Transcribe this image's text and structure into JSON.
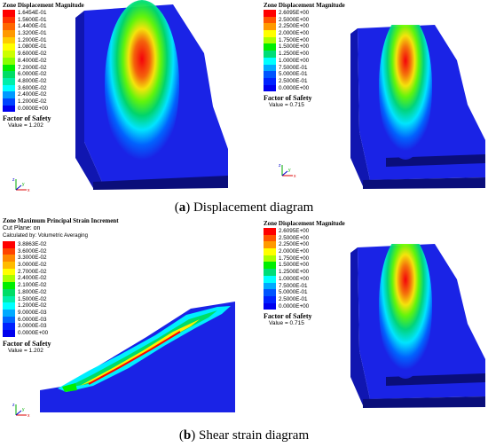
{
  "legends": {
    "top_left": {
      "title": "Zone Displacement Magnitude",
      "entries": [
        {
          "label": "1.6454E-01",
          "color": "#ff0000"
        },
        {
          "label": "1.5600E-01",
          "color": "#ff3300"
        },
        {
          "label": "1.4400E-01",
          "color": "#ff6600"
        },
        {
          "label": "1.3200E-01",
          "color": "#ff9900"
        },
        {
          "label": "1.2000E-01",
          "color": "#ffcc00"
        },
        {
          "label": "1.0800E-01",
          "color": "#ffff00"
        },
        {
          "label": "9.6000E-02",
          "color": "#ccff00"
        },
        {
          "label": "8.4000E-02",
          "color": "#88ff00"
        },
        {
          "label": "7.2000E-02",
          "color": "#00ee00"
        },
        {
          "label": "6.0000E-02",
          "color": "#00dd66"
        },
        {
          "label": "4.8000E-02",
          "color": "#00eeaa"
        },
        {
          "label": "3.6000E-02",
          "color": "#00ffff"
        },
        {
          "label": "2.4000E-02",
          "color": "#0099ff"
        },
        {
          "label": "1.2000E-02",
          "color": "#0044ff"
        },
        {
          "label": "0.0000E+00",
          "color": "#0000ee"
        }
      ],
      "fos_label": "Factor of Safety",
      "fos_value": "Value = 1.202"
    },
    "top_right": {
      "title": "Zone Displacement Magnitude",
      "entries": [
        {
          "label": "2.6095E+00",
          "color": "#ff0000"
        },
        {
          "label": "2.5000E+00",
          "color": "#ff5500"
        },
        {
          "label": "2.2500E+00",
          "color": "#ff9900"
        },
        {
          "label": "2.0000E+00",
          "color": "#ffff00"
        },
        {
          "label": "1.7500E+00",
          "color": "#aaff00"
        },
        {
          "label": "1.5000E+00",
          "color": "#00ee00"
        },
        {
          "label": "1.2500E+00",
          "color": "#00dd77"
        },
        {
          "label": "1.0000E+00",
          "color": "#00ffff"
        },
        {
          "label": "7.5000E-01",
          "color": "#00aaff"
        },
        {
          "label": "5.0000E-01",
          "color": "#0055ff"
        },
        {
          "label": "2.5000E-01",
          "color": "#0022ff"
        },
        {
          "label": "0.0000E+00",
          "color": "#0000ee"
        }
      ],
      "fos_label": "Factor of Safety",
      "fos_value": "Value = 0.715"
    },
    "bottom_left": {
      "title": "Zone Maximum Principal Strain Increment",
      "subtitle1": "Cut Plane: on",
      "subtitle2": "Calculated by: Volumetric Averaging",
      "entries": [
        {
          "label": "3.8863E-02",
          "color": "#ff0000"
        },
        {
          "label": "3.6000E-02",
          "color": "#ff4400"
        },
        {
          "label": "3.3000E-02",
          "color": "#ff8800"
        },
        {
          "label": "3.0000E-02",
          "color": "#ffbb00"
        },
        {
          "label": "2.7000E-02",
          "color": "#ffff00"
        },
        {
          "label": "2.4000E-02",
          "color": "#aaff00"
        },
        {
          "label": "2.1000E-02",
          "color": "#00ee00"
        },
        {
          "label": "1.8000E-02",
          "color": "#00dd66"
        },
        {
          "label": "1.5000E-02",
          "color": "#00eeaa"
        },
        {
          "label": "1.2000E-02",
          "color": "#00ffff"
        },
        {
          "label": "9.0000E-03",
          "color": "#00aaff"
        },
        {
          "label": "6.0000E-03",
          "color": "#0066ff"
        },
        {
          "label": "3.0000E-03",
          "color": "#0022ff"
        },
        {
          "label": "0.0000E+00",
          "color": "#0000ee"
        }
      ],
      "fos_label": "Factor of Safety",
      "fos_value": "Value = 1.202"
    },
    "bottom_right": {
      "title": "Zone Displacement Magnitude",
      "entries": [
        {
          "label": "2.6095E+00",
          "color": "#ff0000"
        },
        {
          "label": "2.5000E+00",
          "color": "#ff5500"
        },
        {
          "label": "2.2500E+00",
          "color": "#ff9900"
        },
        {
          "label": "2.0000E+00",
          "color": "#ffff00"
        },
        {
          "label": "1.7500E+00",
          "color": "#aaff00"
        },
        {
          "label": "1.5000E+00",
          "color": "#00ee00"
        },
        {
          "label": "1.2500E+00",
          "color": "#00dd77"
        },
        {
          "label": "1.0000E+00",
          "color": "#00ffff"
        },
        {
          "label": "7.5000E-01",
          "color": "#00aaff"
        },
        {
          "label": "5.0000E-01",
          "color": "#0055ff"
        },
        {
          "label": "2.5000E-01",
          "color": "#0022ff"
        },
        {
          "label": "0.0000E+00",
          "color": "#0000ee"
        }
      ],
      "fos_label": "Factor of Safety",
      "fos_value": "Value = 0.715"
    }
  },
  "captions": {
    "a_letter": "(a)",
    "a_text": " Displacement diagram",
    "b_letter": "(b)",
    "b_text": " Shear strain diagram"
  },
  "axis_labels": {
    "x": "x",
    "y": "y",
    "z": "z"
  },
  "colors": {
    "base_blue": "#1a23e6",
    "side_blue": "#1016b0",
    "dark_blue": "#0a0e7a"
  }
}
